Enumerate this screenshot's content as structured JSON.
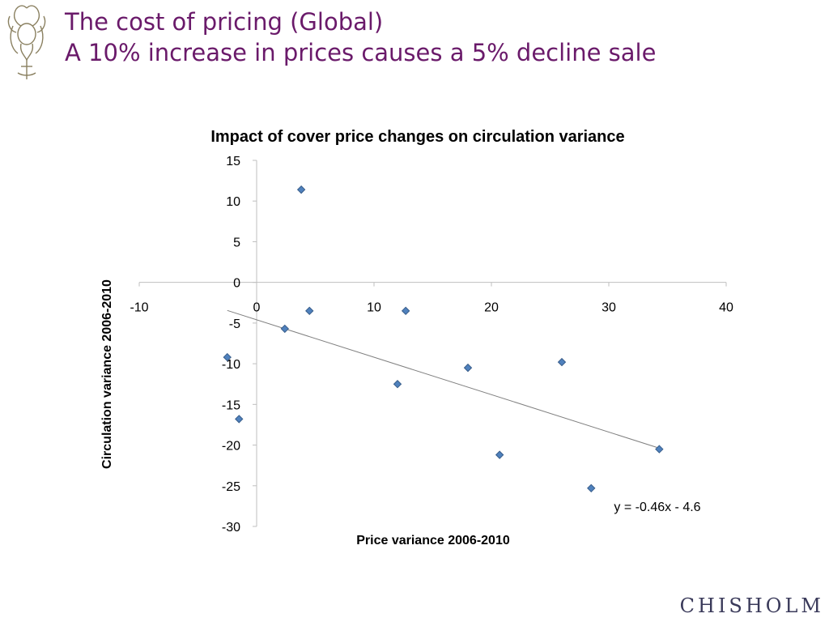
{
  "slide": {
    "title_line1": "The cost of pricing (Global)",
    "title_line2": "A 10% increase in prices causes a 5% decline sale",
    "brand": "CHISHOLM"
  },
  "colors": {
    "title": "#6a1a6a",
    "marker_fill": "#4f81bd",
    "marker_stroke": "#385d8a",
    "axis": "#bfbfbf",
    "trendline": "#7f7f7f"
  },
  "chart_data": {
    "type": "scatter",
    "title": "Impact of cover price changes on circulation variance",
    "xlabel": "Price variance 2006-2010",
    "ylabel": "Circulation variance 2006-2010",
    "xlim": [
      -10,
      40
    ],
    "ylim": [
      -30,
      15
    ],
    "xticks": [
      "-10",
      "0",
      "10",
      "20",
      "30",
      "40"
    ],
    "yticks": [
      "15",
      "10",
      "5",
      "0",
      "-5",
      "-10",
      "-15",
      "-20",
      "-25",
      "-30"
    ],
    "grid": false,
    "legend": "none",
    "points": [
      {
        "x": 3.8,
        "y": 11.4
      },
      {
        "x": 4.5,
        "y": -3.5
      },
      {
        "x": 12.7,
        "y": -3.5
      },
      {
        "x": 2.4,
        "y": -5.7
      },
      {
        "x": -2.5,
        "y": -9.2
      },
      {
        "x": -1.5,
        "y": -16.8
      },
      {
        "x": 12.0,
        "y": -12.5
      },
      {
        "x": 18.0,
        "y": -10.5
      },
      {
        "x": 26.0,
        "y": -9.8
      },
      {
        "x": 20.7,
        "y": -21.2
      },
      {
        "x": 28.5,
        "y": -25.3
      },
      {
        "x": 34.3,
        "y": -20.5
      }
    ],
    "trendline": {
      "slope": -0.46,
      "intercept": -4.6,
      "x_range": [
        -2.5,
        34.3
      ],
      "label": "y = -0.46x - 4.6"
    }
  }
}
